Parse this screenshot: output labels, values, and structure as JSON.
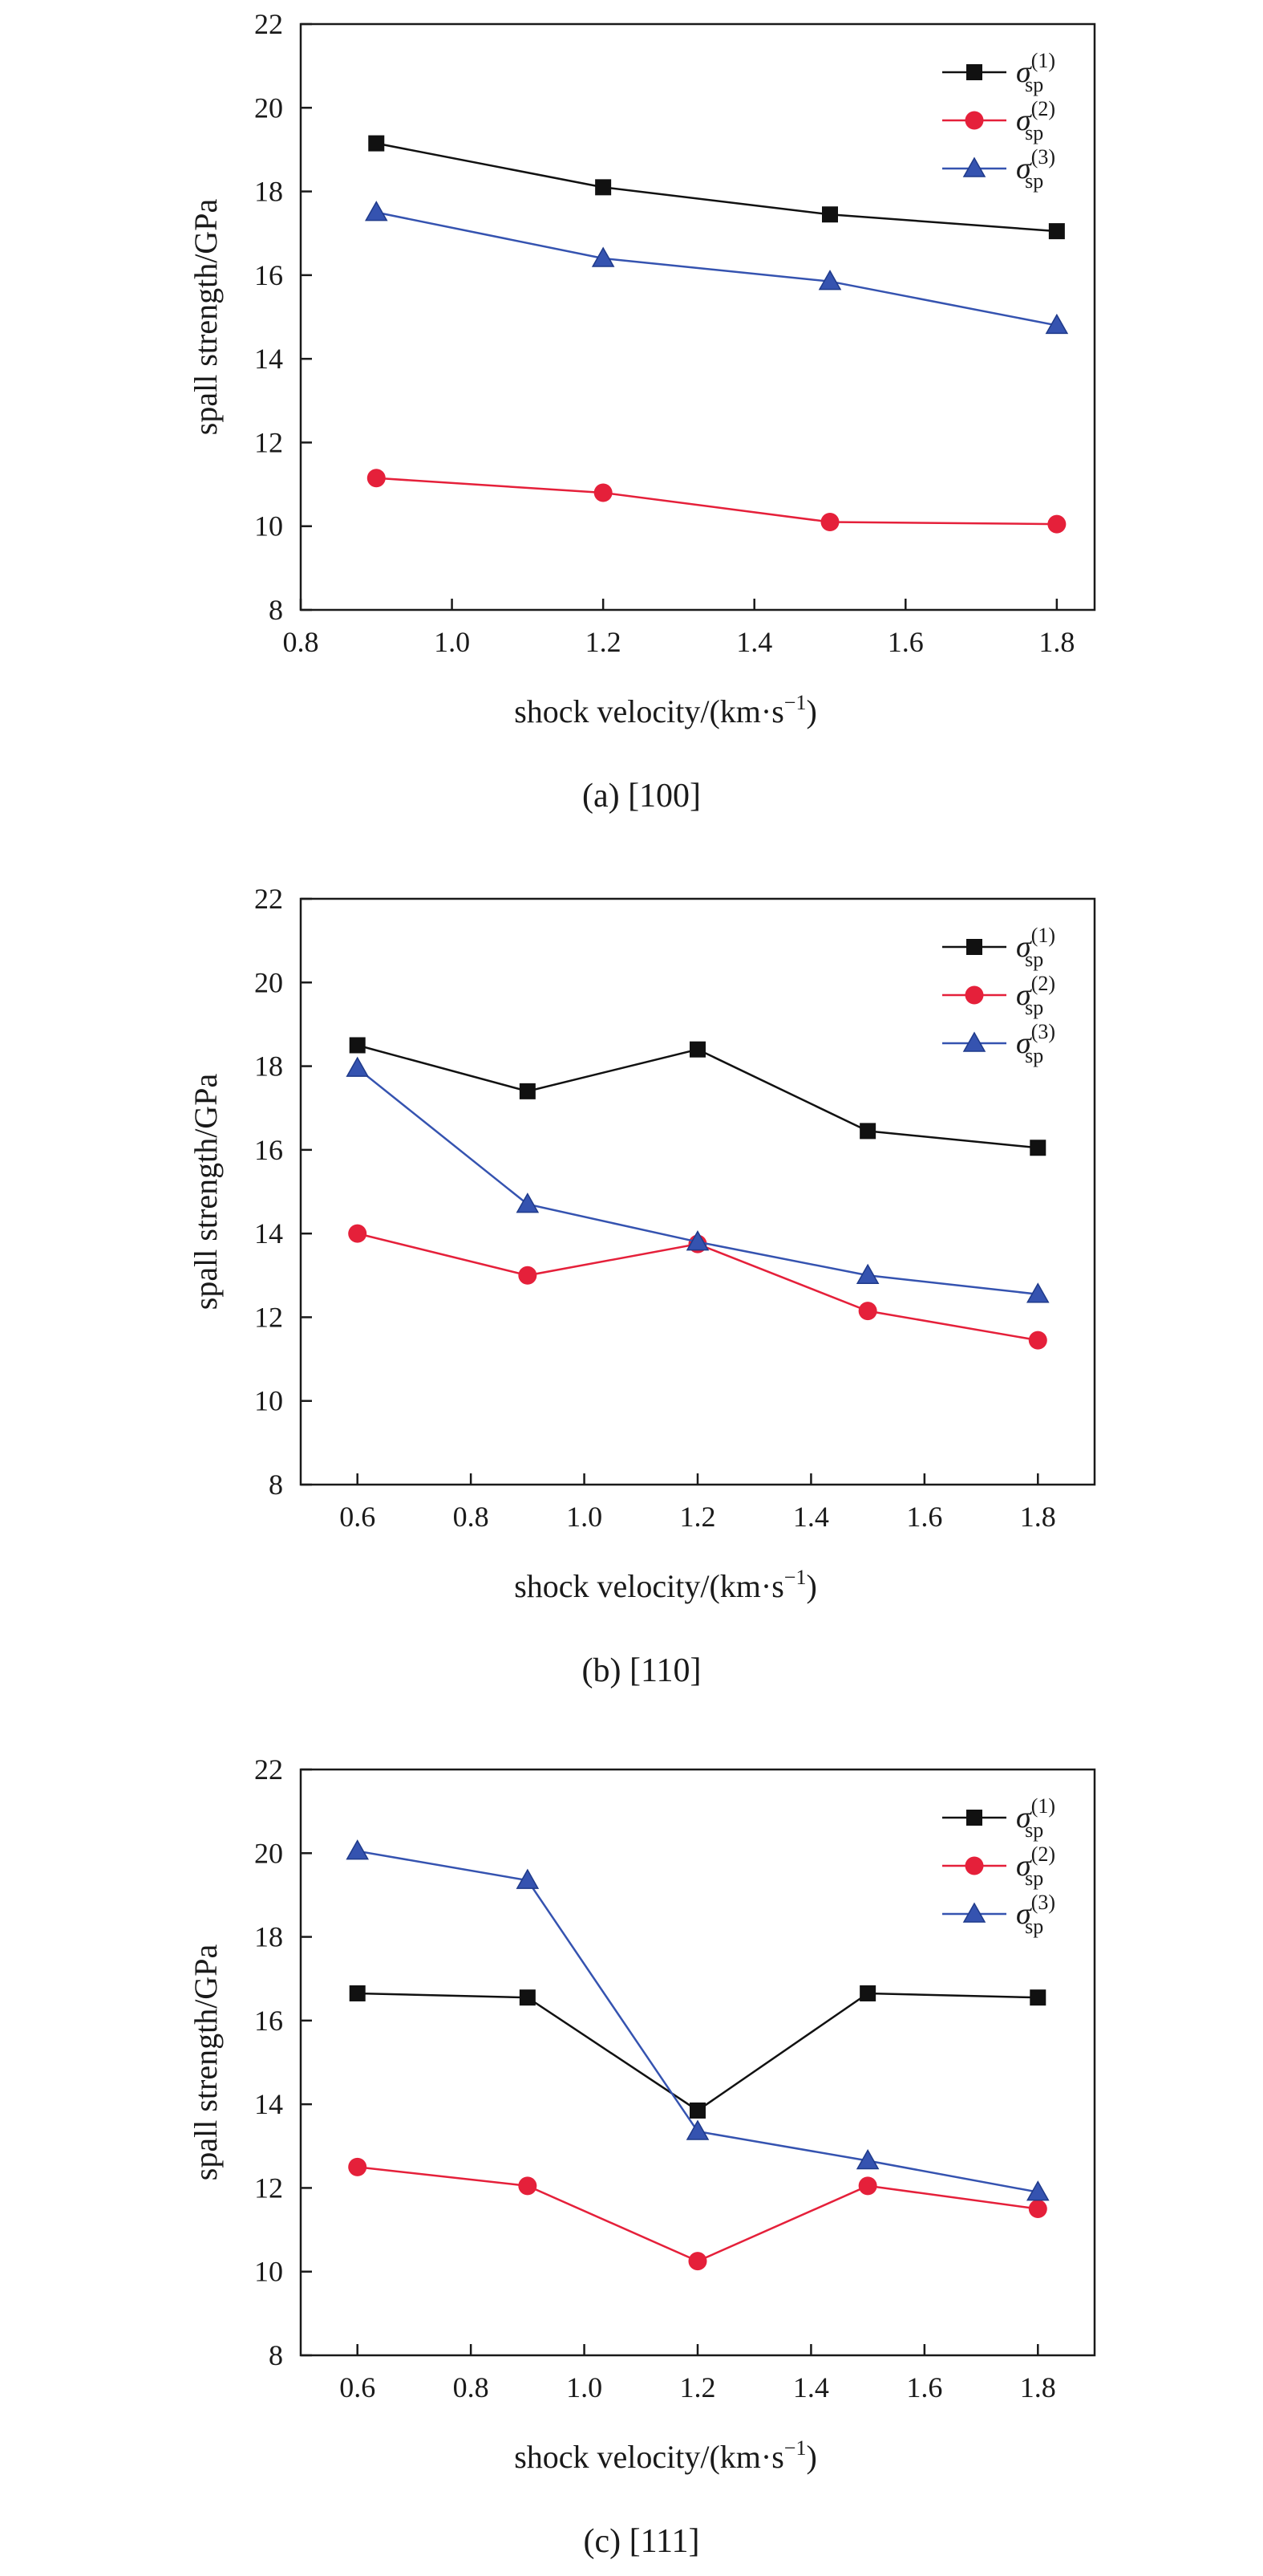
{
  "chart_data": [
    {
      "type": "line",
      "caption": "(a) [100]",
      "xlabel": "shock velocity/(km·s",
      "xlabel_sup": "−1",
      "xlabel_close": ")",
      "ylabel": "spall strength/GPa",
      "xlim": [
        0.8,
        1.85
      ],
      "ylim": [
        8,
        22
      ],
      "xticks": [
        0.8,
        1.0,
        1.2,
        1.4,
        1.6,
        1.8
      ],
      "xtick_labels": [
        "0.8",
        "1.0",
        "1.2",
        "1.4",
        "1.6",
        "1.8"
      ],
      "yticks": [
        8,
        10,
        12,
        14,
        16,
        18,
        20,
        22
      ],
      "ytick_labels": [
        "8",
        "10",
        "12",
        "14",
        "16",
        "18",
        "20",
        "22"
      ],
      "legend_position": "top-right",
      "series": [
        {
          "name": "σ",
          "sub": "sp",
          "sup": "(1)",
          "color": "#111111",
          "marker": "square",
          "x": [
            0.9,
            1.2,
            1.5,
            1.8
          ],
          "y": [
            19.15,
            18.1,
            17.45,
            17.05
          ]
        },
        {
          "name": "σ",
          "sub": "sp",
          "sup": "(2)",
          "color": "#e5203a",
          "marker": "circle",
          "x": [
            0.9,
            1.2,
            1.5,
            1.8
          ],
          "y": [
            11.15,
            10.8,
            10.1,
            10.05
          ]
        },
        {
          "name": "σ",
          "sub": "sp",
          "sup": "(3)",
          "color": "#3553b0",
          "marker": "triangle",
          "x": [
            0.9,
            1.2,
            1.5,
            1.8
          ],
          "y": [
            17.5,
            16.4,
            15.85,
            14.8
          ]
        }
      ]
    },
    {
      "type": "line",
      "caption": "(b) [110]",
      "xlabel": "shock velocity/(km·s",
      "xlabel_sup": "−1",
      "xlabel_close": ")",
      "ylabel": "spall strength/GPa",
      "xlim": [
        0.5,
        1.9
      ],
      "ylim": [
        8,
        22
      ],
      "xticks": [
        0.6,
        0.8,
        1.0,
        1.2,
        1.4,
        1.6,
        1.8
      ],
      "xtick_labels": [
        "0.6",
        "0.8",
        "1.0",
        "1.2",
        "1.4",
        "1.6",
        "1.8"
      ],
      "yticks": [
        8,
        10,
        12,
        14,
        16,
        18,
        20,
        22
      ],
      "ytick_labels": [
        "8",
        "10",
        "12",
        "14",
        "16",
        "18",
        "20",
        "22"
      ],
      "legend_position": "top-right",
      "series": [
        {
          "name": "σ",
          "sub": "sp",
          "sup": "(1)",
          "color": "#111111",
          "marker": "square",
          "x": [
            0.6,
            0.9,
            1.2,
            1.5,
            1.8
          ],
          "y": [
            18.5,
            17.4,
            18.4,
            16.45,
            16.05
          ]
        },
        {
          "name": "σ",
          "sub": "sp",
          "sup": "(2)",
          "color": "#e5203a",
          "marker": "circle",
          "x": [
            0.6,
            0.9,
            1.2,
            1.5,
            1.8
          ],
          "y": [
            14.0,
            13.0,
            13.75,
            12.15,
            11.45
          ]
        },
        {
          "name": "σ",
          "sub": "sp",
          "sup": "(3)",
          "color": "#3553b0",
          "marker": "triangle",
          "x": [
            0.6,
            0.9,
            1.2,
            1.5,
            1.8
          ],
          "y": [
            17.95,
            14.7,
            13.8,
            13.0,
            12.55
          ]
        }
      ]
    },
    {
      "type": "line",
      "caption": "(c) [111]",
      "xlabel": "shock velocity/(km·s",
      "xlabel_sup": "−1",
      "xlabel_close": ")",
      "ylabel": "spall strength/GPa",
      "xlim": [
        0.5,
        1.9
      ],
      "ylim": [
        8,
        22
      ],
      "xticks": [
        0.6,
        0.8,
        1.0,
        1.2,
        1.4,
        1.6,
        1.8
      ],
      "xtick_labels": [
        "0.6",
        "0.8",
        "1.0",
        "1.2",
        "1.4",
        "1.6",
        "1.8"
      ],
      "yticks": [
        8,
        10,
        12,
        14,
        16,
        18,
        20,
        22
      ],
      "ytick_labels": [
        "8",
        "10",
        "12",
        "14",
        "16",
        "18",
        "20",
        "22"
      ],
      "legend_position": "top-right",
      "series": [
        {
          "name": "σ",
          "sub": "sp",
          "sup": "(1)",
          "color": "#111111",
          "marker": "square",
          "x": [
            0.6,
            0.9,
            1.2,
            1.5,
            1.8
          ],
          "y": [
            16.65,
            16.55,
            13.85,
            16.65,
            16.55
          ]
        },
        {
          "name": "σ",
          "sub": "sp",
          "sup": "(2)",
          "color": "#e5203a",
          "marker": "circle",
          "x": [
            0.6,
            0.9,
            1.2,
            1.5,
            1.8
          ],
          "y": [
            12.5,
            12.05,
            10.25,
            12.05,
            11.5
          ]
        },
        {
          "name": "σ",
          "sub": "sp",
          "sup": "(3)",
          "color": "#3553b0",
          "marker": "triangle",
          "x": [
            0.6,
            0.9,
            1.2,
            1.5,
            1.8
          ],
          "y": [
            20.05,
            19.35,
            13.35,
            12.65,
            11.9
          ]
        }
      ]
    }
  ]
}
